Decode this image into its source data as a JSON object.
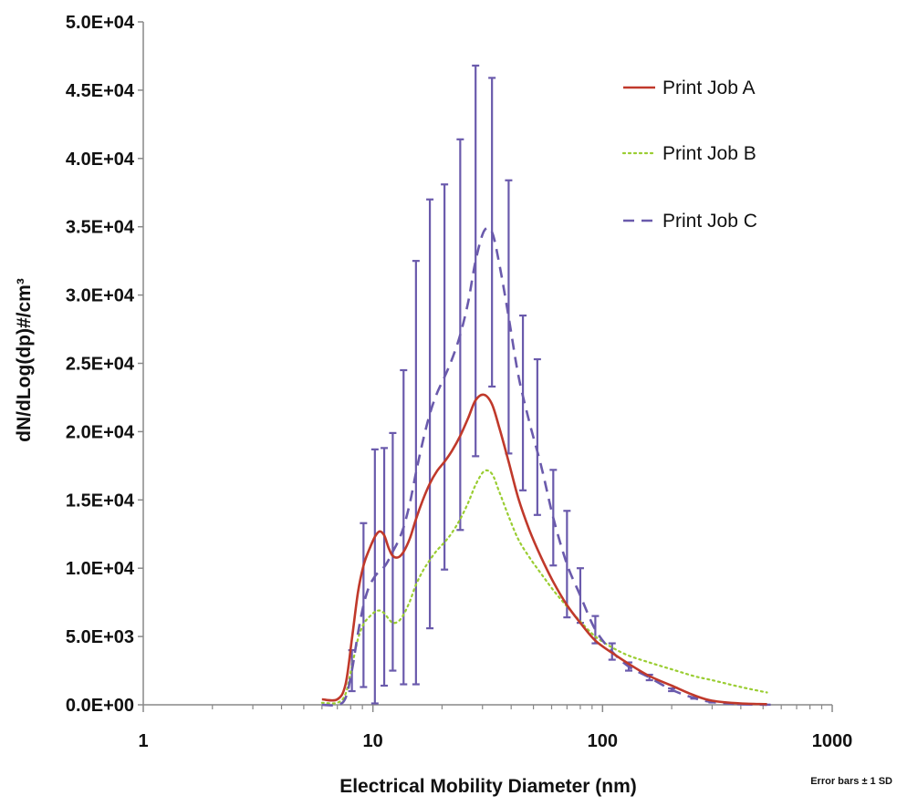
{
  "chart_data": {
    "type": "line",
    "title": "",
    "xlabel": "Electrical Mobility Diameter (nm)",
    "ylabel": "dN/dLog(dp)#/cm³",
    "xscale": "log",
    "xlim": [
      1,
      1000
    ],
    "ylim": [
      0,
      50000
    ],
    "x_tick_labels": [
      "1",
      "10",
      "100",
      "1000"
    ],
    "y_tick_labels": [
      "0.0E+00",
      "5.0E+03",
      "1.0E+04",
      "1.5E+04",
      "2.0E+04",
      "2.5E+04",
      "3.0E+04",
      "3.5E+04",
      "4.0E+04",
      "4.5E+04",
      "5.0E+04"
    ],
    "y_tick_values": [
      0,
      5000,
      10000,
      15000,
      20000,
      25000,
      30000,
      35000,
      40000,
      45000,
      50000
    ],
    "legend_position": "top-right",
    "note": "Error bars ± 1 SD",
    "series": [
      {
        "name": "Print Job A",
        "color": "#c0392b",
        "style": "solid",
        "x": [
          6.0,
          7.0,
          7.6,
          8.1,
          8.6,
          9.1,
          9.6,
          10.2,
          10.7,
          11.2,
          11.7,
          12.2,
          12.9,
          13.6,
          14.5,
          15.4,
          16.5,
          17.7,
          19.0,
          20.5,
          22.1,
          24.0,
          26.0,
          28.0,
          30.5,
          33.0,
          35.5,
          39.0,
          43.0,
          48.0,
          54.0,
          61.0,
          70.0,
          80.0,
          93.0,
          110.0,
          130.0,
          160.0,
          200.0,
          250.0,
          300.0,
          400.0,
          520.0
        ],
        "y": [
          400,
          400,
          1500,
          4800,
          8200,
          10200,
          11300,
          12300,
          12700,
          12400,
          11500,
          10900,
          10800,
          11200,
          12200,
          13600,
          15000,
          16200,
          17100,
          17800,
          18600,
          19700,
          21000,
          22300,
          22700,
          22000,
          20300,
          17800,
          15100,
          12800,
          10800,
          9000,
          7300,
          6000,
          4700,
          3800,
          3000,
          2100,
          1400,
          700,
          300,
          100,
          50
        ]
      },
      {
        "name": "Print Job B",
        "color": "#9acd32",
        "style": "dotted",
        "x": [
          6.0,
          7.0,
          7.6,
          8.1,
          8.6,
          9.1,
          9.6,
          10.2,
          10.7,
          11.2,
          11.7,
          12.2,
          12.9,
          13.6,
          14.5,
          15.4,
          16.5,
          17.7,
          19.0,
          20.5,
          22.1,
          24.0,
          26.0,
          28.0,
          30.5,
          33.0,
          35.5,
          39.0,
          43.0,
          48.0,
          54.0,
          61.0,
          70.0,
          80.0,
          93.0,
          110.0,
          130.0,
          160.0,
          200.0,
          250.0,
          300.0,
          400.0,
          520.0
        ],
        "y": [
          150,
          150,
          800,
          2800,
          4800,
          5900,
          6400,
          6800,
          6900,
          6700,
          6300,
          6000,
          6100,
          6600,
          7600,
          8800,
          9800,
          10600,
          11300,
          11900,
          12600,
          13600,
          14800,
          16100,
          17100,
          16900,
          15600,
          13800,
          12100,
          10800,
          9600,
          8400,
          7200,
          6100,
          5000,
          4200,
          3600,
          3100,
          2600,
          2100,
          1800,
          1300,
          900
        ]
      },
      {
        "name": "Print Job C",
        "color": "#6a5aac",
        "style": "dashed",
        "x": [
          6.0,
          7.0,
          7.6,
          8.1,
          8.6,
          9.1,
          9.6,
          10.2,
          10.7,
          11.2,
          11.7,
          12.2,
          12.9,
          13.6,
          14.5,
          15.4,
          16.5,
          17.7,
          19.0,
          20.5,
          22.1,
          24.0,
          26.0,
          28.0,
          30.5,
          33.0,
          35.5,
          39.0,
          43.0,
          48.0,
          54.0,
          61.0,
          70.0,
          80.0,
          93.0,
          110.0,
          130.0,
          160.0,
          200.0,
          250.0,
          300.0,
          400.0,
          520.0
        ],
        "y": [
          0,
          0,
          500,
          2500,
          5200,
          7300,
          8600,
          9400,
          9800,
          10100,
          10600,
          11200,
          12000,
          13000,
          14800,
          17000,
          19300,
          21300,
          22800,
          24000,
          25300,
          27100,
          29500,
          32500,
          34700,
          34600,
          32300,
          28400,
          24100,
          20700,
          17500,
          13700,
          10300,
          8000,
          5500,
          3900,
          2800,
          2000,
          1100,
          500,
          200,
          50,
          0
        ]
      }
    ],
    "error_bars": {
      "series": "Print Job C",
      "x": [
        8.1,
        9.1,
        10.2,
        11.2,
        12.2,
        13.6,
        15.4,
        17.7,
        20.5,
        24.0,
        28.0,
        33.0,
        39.0,
        45.0,
        52.0,
        61.0,
        70.0,
        80.0,
        93.0,
        110.0,
        130.0,
        160.0,
        200.0,
        250.0,
        300.0,
        400.0,
        520.0
      ],
      "y": [
        2500,
        7300,
        9400,
        10100,
        11200,
        13000,
        17000,
        21300,
        24000,
        27100,
        32500,
        34600,
        28400,
        22100,
        19600,
        13700,
        10300,
        8000,
        5500,
        3900,
        2800,
        2000,
        1100,
        500,
        200,
        50,
        0
      ],
      "err": [
        1500,
        6000,
        9300,
        8700,
        8700,
        11500,
        15500,
        15700,
        14100,
        14300,
        14300,
        11300,
        10000,
        6400,
        5700,
        3500,
        3900,
        2000,
        1000,
        600,
        300,
        200,
        100,
        50,
        30,
        20,
        10
      ]
    }
  }
}
